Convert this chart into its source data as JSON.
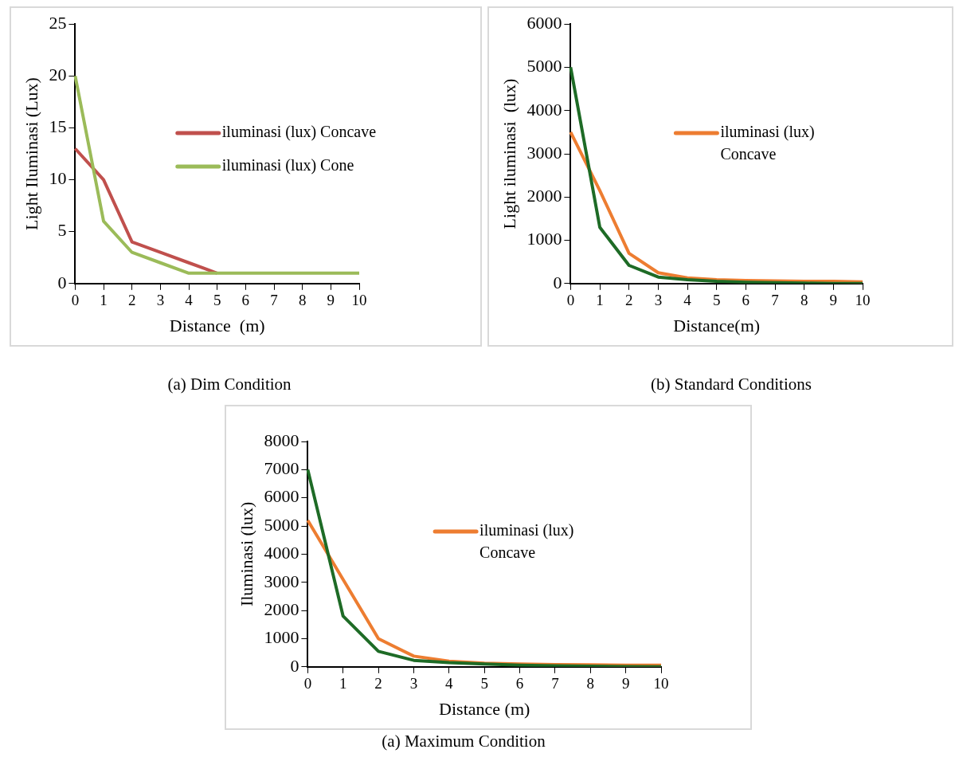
{
  "chart_data": [
    {
      "type": "line",
      "xlabel": "Distance  (m)",
      "ylabel": "Light Iluminasi (Lux)",
      "categories": [
        "0",
        "1",
        "2",
        "3",
        "4",
        "5",
        "6",
        "7",
        "8",
        "9",
        "10"
      ],
      "ylim": [
        0,
        25
      ],
      "yticks": [
        0,
        5,
        10,
        15,
        20,
        25
      ],
      "grid": false,
      "legend": "right",
      "marker": "none",
      "line_style": "solid",
      "annotations": [
        "(a) Dim Condition"
      ],
      "series": [
        {
          "name": "iluminasi (lux) Concave",
          "color": "#c0504d",
          "values": [
            13,
            10,
            4,
            3,
            2,
            1,
            null,
            null,
            null,
            null,
            null
          ]
        },
        {
          "name": "iluminasi (lux) Cone",
          "color": "#9bbb59",
          "values": [
            20,
            6,
            3,
            2,
            1,
            1,
            1,
            1,
            1,
            1,
            1
          ]
        }
      ]
    },
    {
      "type": "line",
      "xlabel": "Distance(m)",
      "ylabel": "Light iluminasi  (lux)",
      "categories": [
        "0",
        "1",
        "2",
        "3",
        "4",
        "5",
        "6",
        "7",
        "8",
        "9",
        "10"
      ],
      "ylim": [
        0,
        6000
      ],
      "yticks": [
        0,
        1000,
        2000,
        3000,
        4000,
        5000,
        6000
      ],
      "grid": false,
      "legend": "right",
      "marker": "none",
      "line_style": "solid",
      "annotations": [
        "(b) Standard Conditions"
      ],
      "series": [
        {
          "name": "iluminasi (lux) Concave",
          "color": "#ed7d31",
          "values": [
            3500,
            2150,
            700,
            250,
            130,
            90,
            70,
            60,
            50,
            50,
            40
          ]
        },
        {
          "color": "#1e6b26",
          "values": [
            5000,
            1300,
            420,
            150,
            90,
            50,
            30,
            20,
            10,
            0,
            0
          ]
        }
      ]
    },
    {
      "type": "line",
      "xlabel": "Distance (m)",
      "ylabel": "Iluminasi (lux)",
      "categories": [
        "0",
        "1",
        "2",
        "3",
        "4",
        "5",
        "6",
        "7",
        "8",
        "9",
        "10"
      ],
      "ylim": [
        0,
        8000
      ],
      "yticks": [
        0,
        1000,
        2000,
        3000,
        4000,
        5000,
        6000,
        7000,
        8000
      ],
      "grid": false,
      "legend": "center",
      "marker": "none",
      "line_style": "solid",
      "annotations": [
        "(a) Maximum Condition"
      ],
      "series": [
        {
          "name": "iluminasi (lux) Concave",
          "color": "#ed7d31",
          "values": [
            5200,
            3100,
            1000,
            380,
            200,
            130,
            100,
            80,
            70,
            60,
            60
          ]
        },
        {
          "color": "#1e6b26",
          "values": [
            7000,
            1800,
            550,
            230,
            150,
            100,
            60,
            40,
            20,
            10,
            0
          ]
        }
      ]
    }
  ]
}
